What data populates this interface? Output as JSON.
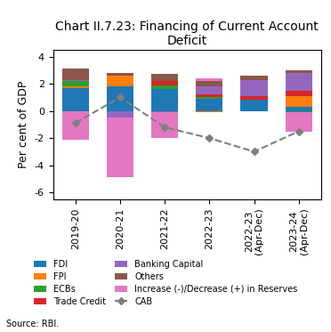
{
  "chart_data": {
    "type": "bar",
    "stacked": true,
    "title": "Chart II.7.23: Financing of Current Account Deficit",
    "y_label": "Per cent of GDP",
    "annotations": [
      "Source: RBI."
    ],
    "categories": [
      "2019-20",
      "2020-21",
      "2021-22",
      "2022-23",
      "2022-23\n(Apr-Dec)",
      "2023-24\n(Apr-Dec)"
    ],
    "ylim": [
      -6.5,
      4.5
    ],
    "yticks": [
      -6,
      -4,
      -2,
      0,
      2,
      4
    ],
    "legend": "lower center",
    "series": [
      {
        "name": "FDI",
        "type": "bar",
        "values": [
          1.7,
          1.8,
          1.6,
          0.9,
          0.8,
          0.3
        ]
      },
      {
        "name": "FPI",
        "type": "bar",
        "values": [
          0.1,
          0.8,
          0.0,
          -0.1,
          0.0,
          0.8
        ]
      },
      {
        "name": "ECBs",
        "type": "bar",
        "values": [
          0.4,
          0.0,
          0.3,
          0.1,
          0.0,
          -0.1
        ]
      },
      {
        "name": "Trade Credit",
        "type": "bar",
        "values": [
          0.0,
          0.0,
          0.3,
          0.2,
          0.3,
          0.4
        ]
      },
      {
        "name": "Banking Capital",
        "type": "bar",
        "values": [
          0.1,
          -0.5,
          -0.1,
          0.6,
          1.2,
          1.3
        ]
      },
      {
        "name": "Others",
        "type": "bar",
        "values": [
          0.8,
          0.2,
          0.5,
          0.4,
          0.3,
          0.2
        ]
      },
      {
        "name": "Increase (-)/Decrease (+) in Reserves",
        "type": "bar",
        "values": [
          -2.1,
          -4.4,
          -1.9,
          0.2,
          0.0,
          -1.4
        ]
      },
      {
        "name": "CAB",
        "type": "line",
        "marker": "diamond",
        "line_style": "dashed",
        "values": [
          -0.9,
          1.0,
          -1.2,
          -2.0,
          -3.0,
          -1.5
        ]
      }
    ]
  }
}
